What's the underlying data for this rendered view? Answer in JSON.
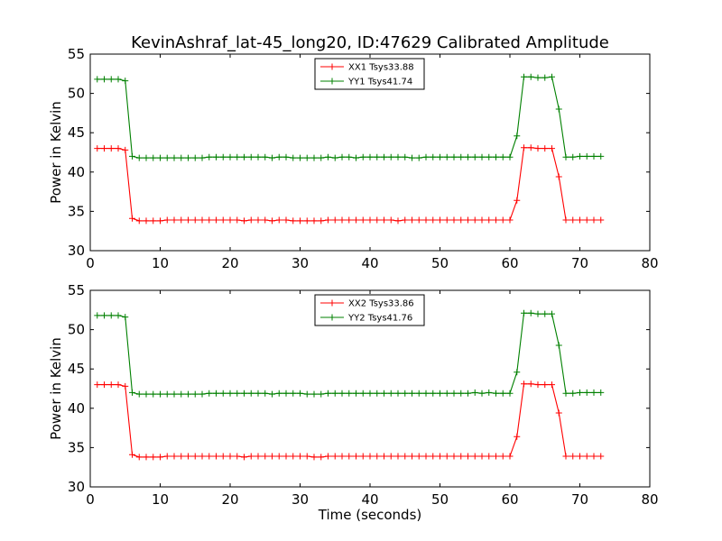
{
  "chart_data": {
    "title": "KevinAshraf_lat-45_long20, ID:47629 Calibrated Amplitude",
    "panels": [
      {
        "type": "line",
        "xlabel": "",
        "ylabel": "Power in Kelvin",
        "xlim": [
          0,
          80
        ],
        "ylim": [
          30,
          55
        ],
        "xticks": [
          "0",
          "10",
          "20",
          "30",
          "40",
          "50",
          "60",
          "70",
          "80"
        ],
        "yticks": [
          "30",
          "35",
          "40",
          "45",
          "50",
          "55"
        ],
        "legend_position": "top-center",
        "x": [
          1,
          2,
          3,
          4,
          5,
          6,
          7,
          8,
          9,
          10,
          11,
          12,
          13,
          14,
          15,
          16,
          17,
          18,
          19,
          20,
          21,
          22,
          23,
          24,
          25,
          26,
          27,
          28,
          29,
          30,
          31,
          32,
          33,
          34,
          35,
          36,
          37,
          38,
          39,
          40,
          41,
          42,
          43,
          44,
          45,
          46,
          47,
          48,
          49,
          50,
          51,
          52,
          53,
          54,
          55,
          56,
          57,
          58,
          59,
          60,
          61,
          62,
          63,
          64,
          65,
          66,
          67,
          68,
          69,
          70,
          71,
          72,
          73
        ],
        "series": [
          {
            "name": "XX1 Tsys33.88",
            "color": "#ff0000",
            "values": [
              43.0,
              43.0,
              43.0,
              43.0,
              42.8,
              34.1,
              33.8,
              33.8,
              33.8,
              33.8,
              33.9,
              33.9,
              33.9,
              33.9,
              33.9,
              33.9,
              33.9,
              33.9,
              33.9,
              33.9,
              33.9,
              33.8,
              33.9,
              33.9,
              33.9,
              33.8,
              33.9,
              33.9,
              33.8,
              33.8,
              33.8,
              33.8,
              33.8,
              33.9,
              33.9,
              33.9,
              33.9,
              33.9,
              33.9,
              33.9,
              33.9,
              33.9,
              33.9,
              33.8,
              33.9,
              33.9,
              33.9,
              33.9,
              33.9,
              33.9,
              33.9,
              33.9,
              33.9,
              33.9,
              33.9,
              33.9,
              33.9,
              33.9,
              33.9,
              33.9,
              36.4,
              43.1,
              43.1,
              43.0,
              43.0,
              43.0,
              39.4,
              33.9,
              33.9,
              33.9,
              33.9,
              33.9,
              33.9
            ]
          },
          {
            "name": "YY1 Tsys41.74",
            "color": "#008000",
            "values": [
              51.8,
              51.8,
              51.8,
              51.8,
              51.6,
              42.0,
              41.8,
              41.8,
              41.8,
              41.8,
              41.8,
              41.8,
              41.8,
              41.8,
              41.8,
              41.8,
              41.9,
              41.9,
              41.9,
              41.9,
              41.9,
              41.9,
              41.9,
              41.9,
              41.9,
              41.8,
              41.9,
              41.9,
              41.8,
              41.8,
              41.8,
              41.8,
              41.8,
              41.9,
              41.8,
              41.9,
              41.9,
              41.8,
              41.9,
              41.9,
              41.9,
              41.9,
              41.9,
              41.9,
              41.9,
              41.8,
              41.8,
              41.9,
              41.9,
              41.9,
              41.9,
              41.9,
              41.9,
              41.9,
              41.9,
              41.9,
              41.9,
              41.9,
              41.9,
              41.9,
              44.6,
              52.1,
              52.1,
              52.0,
              52.0,
              52.1,
              48.0,
              41.9,
              41.9,
              42.0,
              42.0,
              42.0,
              42.0
            ]
          }
        ]
      },
      {
        "type": "line",
        "xlabel": "Time (seconds)",
        "ylabel": "Power in Kelvin",
        "xlim": [
          0,
          80
        ],
        "ylim": [
          30,
          55
        ],
        "xticks": [
          "0",
          "10",
          "20",
          "30",
          "40",
          "50",
          "60",
          "70",
          "80"
        ],
        "yticks": [
          "30",
          "35",
          "40",
          "45",
          "50",
          "55"
        ],
        "legend_position": "top-center",
        "x": [
          1,
          2,
          3,
          4,
          5,
          6,
          7,
          8,
          9,
          10,
          11,
          12,
          13,
          14,
          15,
          16,
          17,
          18,
          19,
          20,
          21,
          22,
          23,
          24,
          25,
          26,
          27,
          28,
          29,
          30,
          31,
          32,
          33,
          34,
          35,
          36,
          37,
          38,
          39,
          40,
          41,
          42,
          43,
          44,
          45,
          46,
          47,
          48,
          49,
          50,
          51,
          52,
          53,
          54,
          55,
          56,
          57,
          58,
          59,
          60,
          61,
          62,
          63,
          64,
          65,
          66,
          67,
          68,
          69,
          70,
          71,
          72,
          73
        ],
        "series": [
          {
            "name": "XX2 Tsys33.86",
            "color": "#ff0000",
            "values": [
              43.0,
              43.0,
              43.0,
              43.0,
              42.8,
              34.1,
              33.8,
              33.8,
              33.8,
              33.8,
              33.9,
              33.9,
              33.9,
              33.9,
              33.9,
              33.9,
              33.9,
              33.9,
              33.9,
              33.9,
              33.9,
              33.8,
              33.9,
              33.9,
              33.9,
              33.9,
              33.9,
              33.9,
              33.9,
              33.9,
              33.9,
              33.8,
              33.8,
              33.9,
              33.9,
              33.9,
              33.9,
              33.9,
              33.9,
              33.9,
              33.9,
              33.9,
              33.9,
              33.9,
              33.9,
              33.9,
              33.9,
              33.9,
              33.9,
              33.9,
              33.9,
              33.9,
              33.9,
              33.9,
              33.9,
              33.9,
              33.9,
              33.9,
              33.9,
              33.9,
              36.4,
              43.1,
              43.1,
              43.0,
              43.0,
              43.0,
              39.4,
              33.9,
              33.9,
              33.9,
              33.9,
              33.9,
              33.9
            ]
          },
          {
            "name": "YY2 Tsys41.76",
            "color": "#008000",
            "values": [
              51.8,
              51.8,
              51.8,
              51.8,
              51.6,
              42.0,
              41.8,
              41.8,
              41.8,
              41.8,
              41.8,
              41.8,
              41.8,
              41.8,
              41.8,
              41.8,
              41.9,
              41.9,
              41.9,
              41.9,
              41.9,
              41.9,
              41.9,
              41.9,
              41.9,
              41.8,
              41.9,
              41.9,
              41.9,
              41.9,
              41.8,
              41.8,
              41.8,
              41.9,
              41.9,
              41.9,
              41.9,
              41.9,
              41.9,
              41.9,
              41.9,
              41.9,
              41.9,
              41.9,
              41.9,
              41.9,
              41.9,
              41.9,
              41.9,
              41.9,
              41.9,
              41.9,
              41.9,
              41.9,
              42.0,
              41.9,
              42.0,
              41.9,
              41.9,
              41.9,
              44.6,
              52.1,
              52.1,
              52.0,
              52.0,
              52.0,
              48.0,
              41.9,
              41.9,
              42.0,
              42.0,
              42.0,
              42.0
            ]
          }
        ]
      }
    ]
  }
}
